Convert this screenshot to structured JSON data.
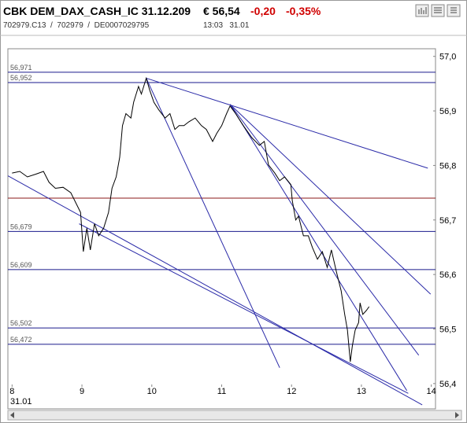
{
  "header": {
    "symbol": "CBK DEM_DAX_CASH_IC 31.12.209",
    "price": "€ 56,54",
    "change": "-0,20",
    "change_pct": "-0,35%",
    "ids": "702979.C13  /  702979  /  DE0007029795",
    "time": "13:03   31.01"
  },
  "chart_data": {
    "type": "line",
    "x_date_label": "31.01",
    "xlim": [
      7.94,
      14.06
    ],
    "xticks": [
      8,
      9,
      10,
      11,
      12,
      13,
      14
    ],
    "ylim": [
      56.394,
      57.014
    ],
    "yticks": [
      {
        "value": 56.4,
        "label": "56,4"
      },
      {
        "value": 56.5,
        "label": "56,5"
      },
      {
        "value": 56.6,
        "label": "56,6"
      },
      {
        "value": 56.7,
        "label": "56,7"
      },
      {
        "value": 56.8,
        "label": "56,8"
      },
      {
        "value": 56.9,
        "label": "56,9"
      },
      {
        "value": 57.0,
        "label": "57,0"
      }
    ],
    "series": [
      {
        "color": "#000000",
        "x": [
          8.0,
          8.11,
          8.22,
          8.34,
          8.45,
          8.53,
          8.62,
          8.73,
          8.84,
          8.91,
          8.98,
          9.02,
          9.07,
          9.12,
          9.18,
          9.24,
          9.31,
          9.38,
          9.43,
          9.49,
          9.54,
          9.58,
          9.63,
          9.7,
          9.74,
          9.81,
          9.85,
          9.92,
          9.97,
          10.03,
          10.1,
          10.19,
          10.26,
          10.33,
          10.39,
          10.46,
          10.53,
          10.62,
          10.71,
          10.78,
          10.87,
          10.93,
          11.0,
          11.07,
          11.12,
          11.2,
          11.31,
          11.43,
          11.54,
          11.61,
          11.67,
          11.76,
          11.83,
          11.9,
          11.99,
          12.01,
          12.06,
          12.1,
          12.17,
          12.24,
          12.3,
          12.37,
          12.44,
          12.51,
          12.57,
          12.64,
          12.71,
          12.76,
          12.8,
          12.84,
          12.87,
          12.91,
          12.96,
          12.98,
          13.02,
          13.07,
          13.11
        ],
        "values": [
          56.786,
          56.789,
          56.779,
          56.784,
          56.789,
          56.769,
          56.758,
          56.76,
          56.75,
          56.732,
          56.714,
          56.642,
          56.685,
          56.645,
          56.693,
          56.671,
          56.685,
          56.714,
          56.758,
          56.779,
          56.815,
          56.873,
          56.895,
          56.887,
          56.916,
          56.945,
          56.931,
          56.96,
          56.938,
          56.916,
          56.902,
          56.887,
          56.895,
          56.866,
          56.873,
          56.873,
          56.88,
          56.887,
          56.873,
          56.866,
          56.844,
          56.859,
          56.873,
          56.895,
          56.909,
          56.895,
          56.873,
          56.851,
          56.837,
          56.844,
          56.801,
          56.786,
          56.772,
          56.779,
          56.765,
          56.736,
          56.7,
          56.707,
          56.671,
          56.671,
          56.649,
          56.628,
          56.642,
          56.613,
          56.645,
          56.606,
          56.57,
          56.527,
          56.498,
          56.44,
          56.469,
          56.498,
          56.512,
          56.548,
          56.527,
          56.534,
          56.541
        ]
      }
    ],
    "hlines": [
      {
        "value": 56.971,
        "label": "56,971",
        "color": "#1a1a8c"
      },
      {
        "value": 56.952,
        "label": "56,952",
        "color": "#1a1a8c"
      },
      {
        "value": 56.74,
        "color": "#8b1a1a"
      },
      {
        "value": 56.679,
        "label": "56,679",
        "color": "#1a1a8c"
      },
      {
        "value": 56.609,
        "label": "56,609",
        "color": "#1a1a8c"
      },
      {
        "value": 56.502,
        "label": "56,502",
        "color": "#1a1a8c"
      },
      {
        "value": 56.472,
        "label": "56,472",
        "color": "#1a1a8c"
      }
    ],
    "trend_color": "#2a2aa8",
    "trendlines": [
      {
        "x": [
          9.92,
          13.95
        ],
        "y": [
          56.96,
          56.795
        ]
      },
      {
        "x": [
          9.92,
          11.83
        ],
        "y": [
          56.96,
          56.429
        ]
      },
      {
        "x": [
          11.12,
          13.99
        ],
        "y": [
          56.912,
          56.564
        ]
      },
      {
        "x": [
          11.12,
          13.82
        ],
        "y": [
          56.912,
          56.452
        ]
      },
      {
        "x": [
          11.12,
          13.65
        ],
        "y": [
          56.912,
          56.387
        ]
      },
      {
        "x": [
          7.94,
          13.87
        ],
        "y": [
          56.781,
          56.361
        ]
      },
      {
        "x": [
          8.96,
          13.67
        ],
        "y": [
          56.693,
          56.382
        ]
      }
    ]
  }
}
